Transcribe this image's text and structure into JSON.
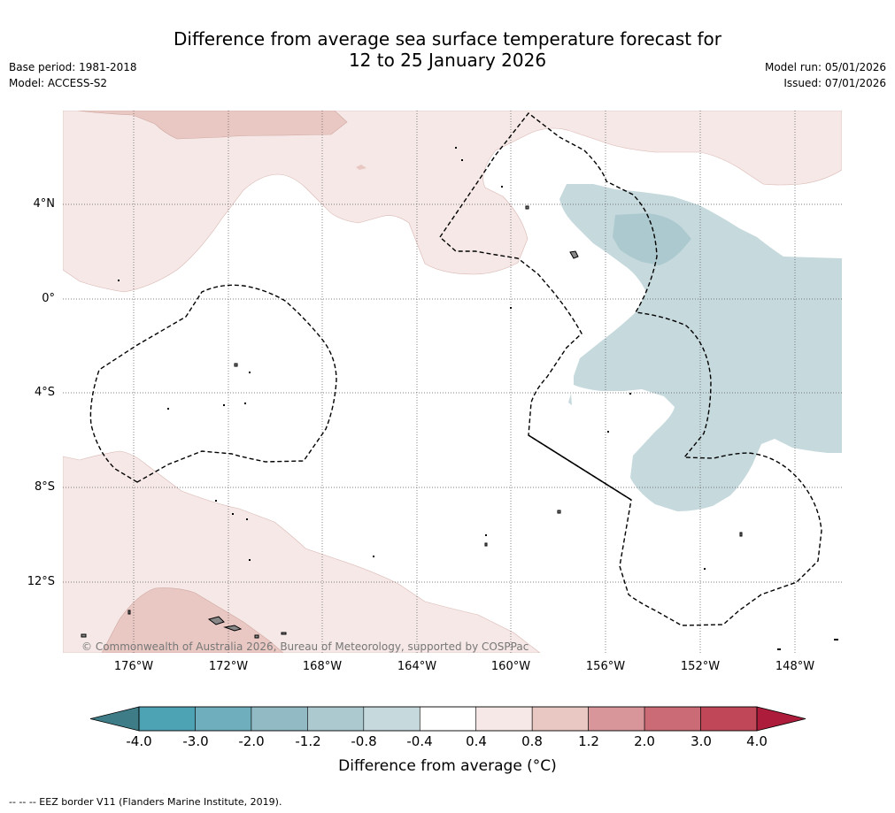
{
  "header": {
    "title_line1": "Difference from average sea surface temperature forecast for",
    "title_line2": "12 to 25 January 2026",
    "base_period": "Base period: 1981-2018",
    "model": "Model: ACCESS-S2",
    "model_run": "Model run: 05/01/2026",
    "issued": "Issued: 07/01/2026"
  },
  "map": {
    "lat_labels": [
      "4°N",
      "0°",
      "4°S",
      "8°S",
      "12°S"
    ],
    "lon_labels": [
      "176°W",
      "172°W",
      "168°W",
      "164°W",
      "160°W",
      "156°W",
      "152°W",
      "148°W"
    ],
    "copyright": "© Commonwealth of Australia 2026, Bureau of Meteorology, supported by COSPPac",
    "colors": {
      "warm_light": "#f5e8e6",
      "warm_mid": "#e9c8c3",
      "cool_light": "#c6d9dd",
      "cool_mid": "#abc9ce",
      "land": "#888888"
    }
  },
  "colorbar": {
    "ticks": [
      "-4.0",
      "-3.0",
      "-2.0",
      "-1.2",
      "-0.8",
      "-0.4",
      "0.4",
      "0.8",
      "1.2",
      "2.0",
      "3.0",
      "4.0"
    ],
    "colors": [
      "#3e7d87",
      "#4da3b3",
      "#6faebc",
      "#91bac4",
      "#abc9ce",
      "#c6d9dd",
      "#ffffff",
      "#f5e8e6",
      "#e9c8c3",
      "#d8969b",
      "#ca6b76",
      "#c04757",
      "#ad1c3a"
    ],
    "title": "Difference from average (°C)"
  },
  "footer": {
    "eez_note": "-- -- -- EEZ border V11 (Flanders Marine Institute, 2019)."
  }
}
